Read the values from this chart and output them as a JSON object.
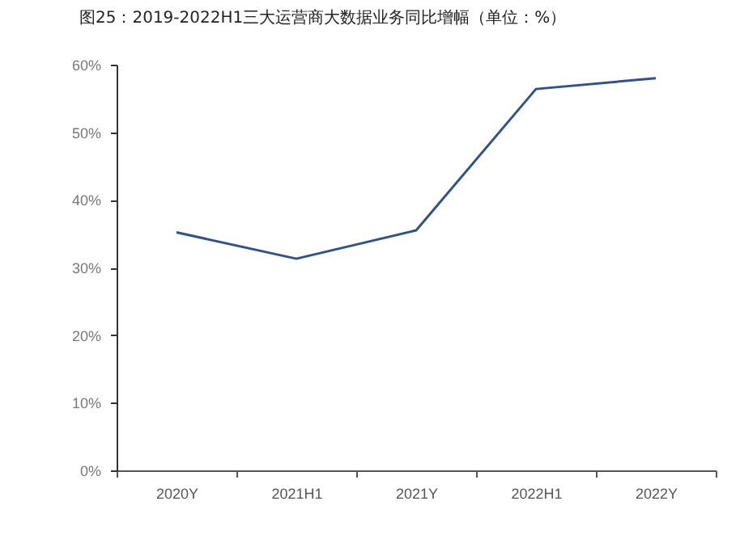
{
  "chart_data": {
    "type": "line",
    "title": "图25：2019-2022H1三大运营商大数据业务同比增幅（单位：%）",
    "categories": [
      "2020Y",
      "2021H1",
      "2021Y",
      "2022H1",
      "2022Y"
    ],
    "series": [
      {
        "color": "#2f528f",
        "values": [
          35.2,
          31.3,
          35.5,
          56.4,
          58.0
        ]
      }
    ],
    "ylim": [
      0,
      60
    ],
    "yticks": [
      {
        "value": 0,
        "label": "0%"
      },
      {
        "value": 10,
        "label": "10%"
      },
      {
        "value": 20,
        "label": "20%"
      },
      {
        "value": 30,
        "label": "30%"
      },
      {
        "value": 40,
        "label": "40%"
      },
      {
        "value": 50,
        "label": "50%"
      },
      {
        "value": 60,
        "label": "60%"
      }
    ],
    "grid": false
  }
}
